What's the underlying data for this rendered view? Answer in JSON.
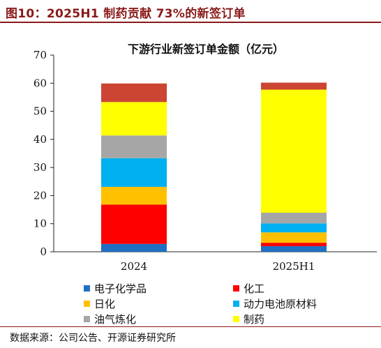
{
  "figure_title": "图10：2025H1 制药贡献 73%的新签订单",
  "source": "数据来源：公司公告、开源证券研究所",
  "chart_data": {
    "type": "bar",
    "stacked": true,
    "title": "下游行业新签订单金额（亿元）",
    "categories": [
      "2024",
      "2025H1"
    ],
    "ylim": [
      0,
      70
    ],
    "yticks": [
      "0",
      "10",
      "20",
      "30",
      "40",
      "50",
      "60",
      "70"
    ],
    "grid": false,
    "legend_position": "bottom",
    "series": [
      {
        "name": "电子化学品",
        "color": "#1f6fc5",
        "values": [
          2.8,
          2.0
        ]
      },
      {
        "name": "化工",
        "color": "#ff0000",
        "values": [
          14.0,
          1.2
        ]
      },
      {
        "name": "日化",
        "color": "#ffc000",
        "values": [
          6.3,
          3.7
        ]
      },
      {
        "name": "动力电池原材料",
        "color": "#00b0f0",
        "values": [
          10.2,
          3.2
        ]
      },
      {
        "name": "油气炼化",
        "color": "#a6a6a6",
        "values": [
          8.1,
          3.8
        ]
      },
      {
        "name": "制药",
        "color": "#ffff00",
        "values": [
          11.9,
          43.8
        ]
      },
      {
        "name": "",
        "color": "#cc4433",
        "values": [
          6.6,
          2.5
        ]
      }
    ]
  }
}
